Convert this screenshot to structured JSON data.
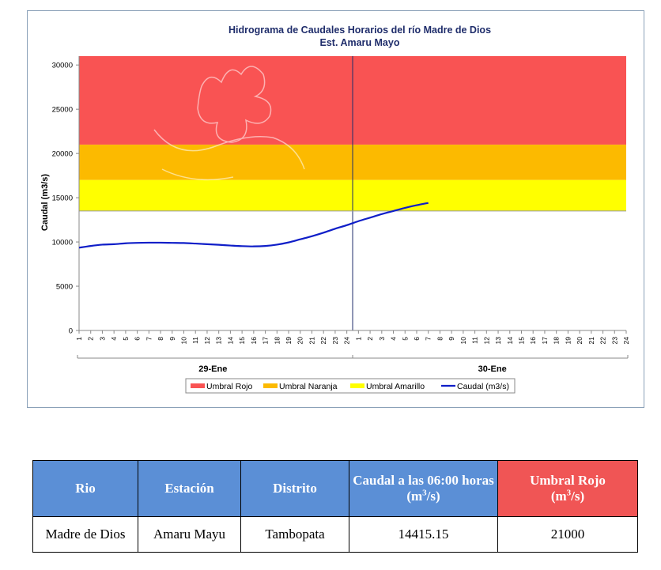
{
  "chart_data": {
    "type": "line",
    "title": "Hidrograma de Caudales Horarios del río Madre de Dios",
    "subtitle": "Est. Amaru Mayo",
    "ylabel": "Caudal  (m3/s)",
    "ylim": [
      0,
      31000
    ],
    "yticks": [
      0,
      5000,
      10000,
      15000,
      20000,
      25000,
      30000
    ],
    "days": [
      {
        "label": "29-Ene",
        "hours": [
          "1",
          "2",
          "3",
          "4",
          "5",
          "6",
          "7",
          "8",
          "9",
          "10",
          "11",
          "12",
          "13",
          "14",
          "15",
          "16",
          "17",
          "18",
          "19",
          "20",
          "21",
          "22",
          "23",
          "24"
        ]
      },
      {
        "label": "30-Ene",
        "hours": [
          "1",
          "2",
          "3",
          "4",
          "5",
          "6",
          "7",
          "8",
          "9",
          "10",
          "11",
          "12",
          "13",
          "14",
          "15",
          "16",
          "17",
          "18",
          "19",
          "20",
          "21",
          "22",
          "23",
          "24"
        ]
      }
    ],
    "thresholds": [
      {
        "name": "Umbral Rojo",
        "from": 21000,
        "to": 31000,
        "color": "#f95353"
      },
      {
        "name": "Umbral Naranja",
        "from": 17000,
        "to": 21000,
        "color": "#fcba00"
      },
      {
        "name": "Umbral Amarillo",
        "from": 13500,
        "to": 17000,
        "color": "#ffff00"
      }
    ],
    "series": [
      {
        "name": "Caudal (m3/s)",
        "color": "#0f1ec8",
        "values": [
          9350,
          9550,
          9700,
          9750,
          9850,
          9900,
          9920,
          9920,
          9900,
          9880,
          9820,
          9750,
          9680,
          9600,
          9530,
          9500,
          9550,
          9700,
          9950,
          10300,
          10650,
          11050,
          11500,
          11900,
          12350,
          12750,
          13150,
          13500,
          13850,
          14150,
          14415.15
        ]
      }
    ],
    "legend": {
      "position": "bottom"
    },
    "grid": false
  },
  "table": {
    "headers": {
      "rio": "Rio",
      "estacion": "Estación",
      "distrito": "Distrito",
      "caudal_main": "Caudal a las 06:00 horas",
      "caudal_unit": "(m",
      "caudal_sup": "3",
      "caudal_end": "/s)",
      "umbral_main": "Umbral Rojo",
      "umbral_unit": "(m",
      "umbral_sup": "3",
      "umbral_end": "/s)"
    },
    "row": {
      "rio": "Madre de Dios",
      "estacion": "Amaru Mayu",
      "distrito": "Tambopata",
      "caudal": "14415.15",
      "umbral": "21000"
    }
  }
}
